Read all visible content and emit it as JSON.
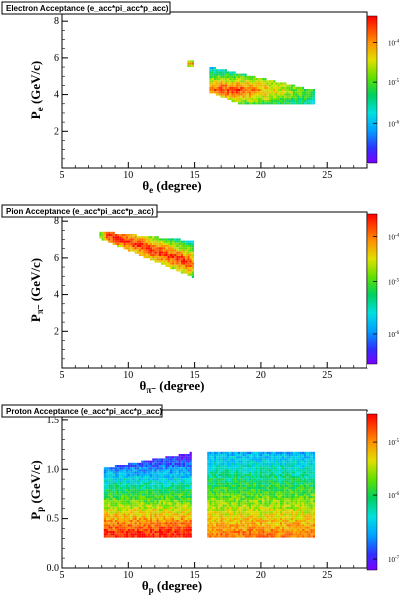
{
  "chart_data": [
    {
      "type": "heatmap",
      "title": "Electron Acceptance (e_acc*pi_acc*p_acc)",
      "xlabel_main": "θ",
      "xlabel_sub": "e",
      "xlabel_rest": " (degree)",
      "ylabel_main": "P",
      "ylabel_sub": "e",
      "ylabel_rest": " (GeV/c)",
      "xlim": [
        5,
        28
      ],
      "ylim": [
        0,
        8.5
      ],
      "xticks": [
        5,
        10,
        15,
        20,
        25
      ],
      "yticks": [
        2,
        4,
        6,
        8
      ],
      "colorbar_labels": [
        {
          "base": "10",
          "exp": "-4",
          "pos": 0.82
        },
        {
          "base": "10",
          "exp": "-5",
          "pos": 0.55
        },
        {
          "base": "10",
          "exp": "-6",
          "pos": 0.27
        }
      ],
      "regions": [
        {
          "shape": [
            [
              14.3,
              5.95
            ],
            [
              14.9,
              5.95
            ],
            [
              14.9,
              5.55
            ],
            [
              14.3,
              5.55
            ]
          ],
          "peak": [
            14.6,
            5.75
          ],
          "max_level": 0.85,
          "falloff": 1.2
        },
        {
          "shape": [
            [
              16,
              5.6
            ],
            [
              24,
              4.3
            ],
            [
              24,
              3.5
            ],
            [
              18.5,
              3.5
            ],
            [
              16,
              4.2
            ]
          ],
          "peak": [
            17.6,
            4.3
          ],
          "max_level": 0.97,
          "falloff": 0.45
        }
      ]
    },
    {
      "type": "heatmap",
      "title": "Pion Acceptance (e_acc*pi_acc*p_acc)",
      "xlabel_main": "θ",
      "xlabel_sub": "π⁻",
      "xlabel_rest": " (degree)",
      "ylabel_main": "P",
      "ylabel_sub": "π⁻",
      "ylabel_rest": " (GeV/c)",
      "xlim": [
        5,
        28
      ],
      "ylim": [
        0,
        8.5
      ],
      "xticks": [
        5,
        10,
        15,
        20,
        25
      ],
      "yticks": [
        2,
        4,
        6,
        8
      ],
      "colorbar_labels": [
        {
          "base": "10",
          "exp": "-4",
          "pos": 0.85
        },
        {
          "base": "10",
          "exp": "-5",
          "pos": 0.55
        },
        {
          "base": "10",
          "exp": "-6",
          "pos": 0.2
        }
      ],
      "regions": [
        {
          "shape": [
            [
              7.8,
              7.5
            ],
            [
              14.8,
              7.0
            ],
            [
              14.8,
              5.0
            ],
            [
              7.8,
              7.1
            ]
          ],
          "peak_line": [
            [
              8.5,
              7.3
            ],
            [
              14.5,
              5.8
            ]
          ],
          "max_level": 0.98,
          "falloff": 0.55
        }
      ]
    },
    {
      "type": "heatmap",
      "title": "Proton Acceptance (e_acc*pi_acc*p_acc)",
      "xlabel_main": "θ",
      "xlabel_sub": "p",
      "xlabel_rest": " (degree)",
      "ylabel_main": "P",
      "ylabel_sub": "p",
      "ylabel_rest": " (GeV/c)",
      "xlim": [
        5,
        28
      ],
      "ylim": [
        0,
        1.6
      ],
      "xticks": [
        5,
        10,
        15,
        20,
        25
      ],
      "yticks": [
        0.0,
        0.5,
        1.0,
        1.5
      ],
      "colorbar_labels": [
        {
          "base": "10",
          "exp": "-5",
          "pos": 0.82
        },
        {
          "base": "10",
          "exp": "-6",
          "pos": 0.48
        },
        {
          "base": "10",
          "exp": "-7",
          "pos": 0.07
        }
      ],
      "regions": [
        {
          "shape": [
            [
              8,
              1.02
            ],
            [
              14.7,
              1.18
            ],
            [
              14.7,
              0.33
            ],
            [
              8,
              0.33
            ]
          ],
          "gradient_y": [
            0.35,
            1.15
          ],
          "max_level": 0.97,
          "min_level": 0.05
        },
        {
          "shape": [
            [
              15.8,
              1.19
            ],
            [
              24,
              1.19
            ],
            [
              24,
              0.33
            ],
            [
              15.8,
              0.33
            ]
          ],
          "gradient_y": [
            0.35,
            1.18
          ],
          "max_level": 0.85,
          "min_level": 0.25
        }
      ]
    }
  ]
}
